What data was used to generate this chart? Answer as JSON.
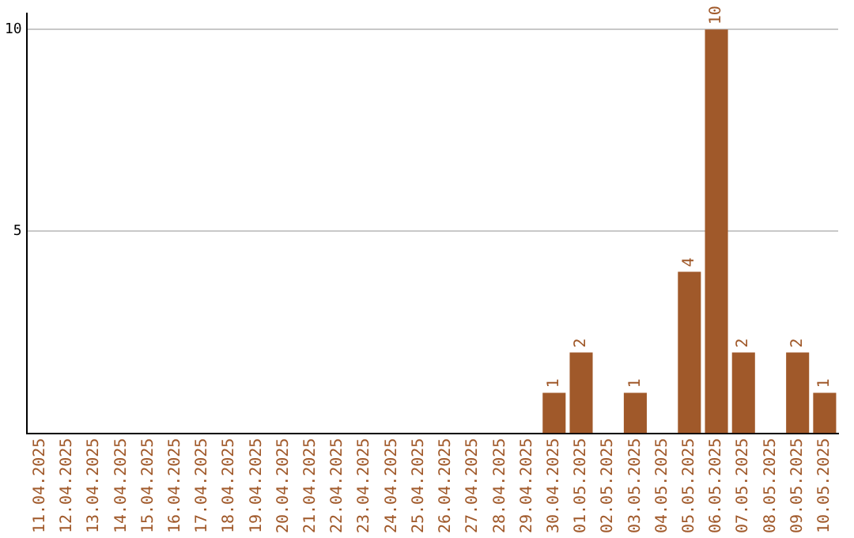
{
  "chart_data": {
    "type": "bar",
    "categories": [
      "11.04.2025",
      "12.04.2025",
      "13.04.2025",
      "14.04.2025",
      "15.04.2025",
      "16.04.2025",
      "17.04.2025",
      "18.04.2025",
      "19.04.2025",
      "20.04.2025",
      "21.04.2025",
      "22.04.2025",
      "23.04.2025",
      "24.04.2025",
      "25.04.2025",
      "26.04.2025",
      "27.04.2025",
      "28.04.2025",
      "29.04.2025",
      "30.04.2025",
      "01.05.2025",
      "02.05.2025",
      "03.05.2025",
      "04.05.2025",
      "05.05.2025",
      "06.05.2025",
      "07.05.2025",
      "08.05.2025",
      "09.05.2025",
      "10.05.2025"
    ],
    "values": [
      0,
      0,
      0,
      0,
      0,
      0,
      0,
      0,
      0,
      0,
      0,
      0,
      0,
      0,
      0,
      0,
      0,
      0,
      0,
      1,
      2,
      0,
      1,
      0,
      4,
      10,
      2,
      0,
      2,
      1
    ],
    "value_labels": [
      null,
      null,
      null,
      null,
      null,
      null,
      null,
      null,
      null,
      null,
      null,
      null,
      null,
      null,
      null,
      null,
      null,
      null,
      null,
      "1",
      "2",
      null,
      "1",
      null,
      "4",
      "10",
      "2",
      null,
      "2",
      "1"
    ],
    "color": "#a0592a",
    "ylim": [
      0,
      10.4
    ],
    "yticks": [
      5,
      10
    ],
    "grid": "y",
    "legend": false
  }
}
